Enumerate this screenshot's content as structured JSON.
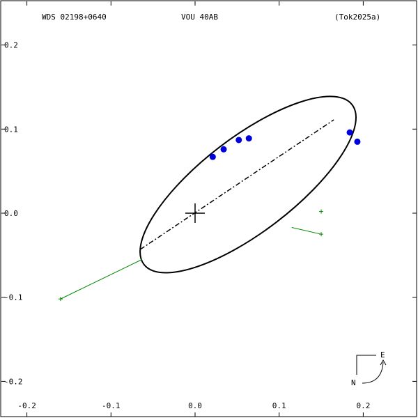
{
  "header": {
    "wds_id": "WDS 02198+0640",
    "discoverer": "VOU  40AB",
    "reference": "(Tok2025a)"
  },
  "compass": {
    "east_label": "E",
    "north_label": "N"
  },
  "chart_data": {
    "type": "scatter",
    "title": "",
    "xlabel": "",
    "ylabel": "",
    "xlim": [
      -0.2,
      0.2
    ],
    "ylim": [
      -0.2,
      0.2
    ],
    "x_ticks": [
      -0.2,
      -0.1,
      0.0,
      0.1,
      0.2
    ],
    "y_ticks": [
      0.2,
      0.1,
      0.0,
      -0.1,
      -0.2
    ],
    "x_tick_labels": [
      "-0.2",
      "-0.1",
      "0.0",
      "0.1",
      "0.2"
    ],
    "y_tick_labels": [
      "0.2",
      "0.1",
      "0.0",
      "-0.1",
      "-0.2"
    ],
    "grid": false,
    "primary": {
      "x": 0.0,
      "y": 0.0,
      "marker": "plus"
    },
    "orbit_ellipse": {
      "center": [
        0.063,
        0.034
      ],
      "semi_major": 0.156,
      "semi_minor": 0.056,
      "angle_deg": 37.5
    },
    "line_of_nodes": {
      "from": [
        -0.065,
        -0.043
      ],
      "to": [
        0.165,
        0.111
      ]
    },
    "observations": {
      "color": "#0000dd",
      "points": [
        {
          "x": 0.021,
          "y": 0.067
        },
        {
          "x": 0.034,
          "y": 0.076
        },
        {
          "x": 0.052,
          "y": 0.087
        },
        {
          "x": 0.064,
          "y": 0.089
        },
        {
          "x": 0.184,
          "y": 0.096
        },
        {
          "x": 0.193,
          "y": 0.085
        }
      ]
    },
    "residual_color": "#008800",
    "residuals": [
      {
        "from": [
          -0.063,
          -0.055
        ],
        "to": [
          -0.16,
          -0.102
        ]
      },
      {
        "from": [
          0.115,
          -0.017
        ],
        "to": [
          0.15,
          -0.025
        ]
      },
      {
        "from": [
          0.15,
          0.002
        ],
        "to": [
          0.15,
          0.002
        ]
      }
    ]
  }
}
